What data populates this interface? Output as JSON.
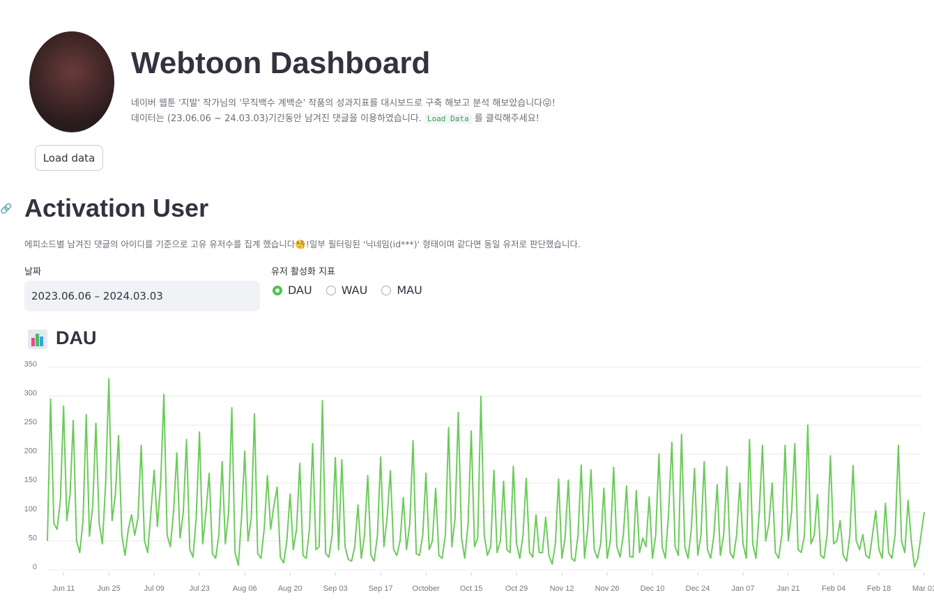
{
  "header": {
    "title": "Webtoon Dashboard",
    "desc1": "네이버 웹툰 '지발' 작가님의 '무직백수 계백순' 작품의 성과지표를 대시보드로 구축 해보고 분석 해보았습니다😜!",
    "desc2": "데이터는 (23.06.06 ~ 24.03.03)기간동안 남겨진 댓글을 이용하였습니다.",
    "desc2_code": "Load Data",
    "desc2_tail": "를 클릭해주세요!",
    "button": "Load data"
  },
  "section": {
    "title": "Activation User",
    "caption": "에피소드별 남겨진 댓글의 아이디를 기준으로 고유 유저수를 집계 했습니다🧐!일부 필터링된 '닉네임(id***)' 형태이며 같다면 동일 유저로 판단했습니다."
  },
  "controls": {
    "date_label": "날짜",
    "date_value": "2023.06.06 – 2024.03.03",
    "radio_label": "유저 활성화 지표",
    "options": [
      "DAU",
      "WAU",
      "MAU"
    ],
    "selected": 0
  },
  "chart_data": {
    "type": "line",
    "title": "DAU",
    "color": "#6bcb5a",
    "grid": true,
    "x": [
      "2023-06-06",
      "2023-06-07",
      "2023-06-08",
      "2023-06-09",
      "2023-06-10",
      "2023-06-11",
      "2023-06-12",
      "2023-06-13",
      "2023-06-14",
      "2023-06-15",
      "2023-06-16",
      "2023-06-17",
      "2023-06-18",
      "2023-06-19",
      "2023-06-20",
      "2023-06-21",
      "2023-06-22",
      "2023-06-23",
      "2023-06-24",
      "2023-06-25",
      "2023-06-26",
      "2023-06-27",
      "2023-06-28",
      "2023-06-29",
      "2023-06-30",
      "2023-07-01",
      "2023-07-02",
      "2023-07-03",
      "2023-07-04",
      "2023-07-05",
      "2023-07-06",
      "2023-07-07",
      "2023-07-08",
      "2023-07-09",
      "2023-07-10",
      "2023-07-11",
      "2023-07-12",
      "2023-07-13",
      "2023-07-14",
      "2023-07-15",
      "2023-07-16",
      "2023-07-17",
      "2023-07-18",
      "2023-07-19",
      "2023-07-20",
      "2023-07-21",
      "2023-07-22",
      "2023-07-23",
      "2023-07-24",
      "2023-07-25",
      "2023-07-26",
      "2023-07-27",
      "2023-07-28",
      "2023-07-29",
      "2023-07-30",
      "2023-07-31",
      "2023-08-01",
      "2023-08-02",
      "2023-08-03",
      "2023-08-04",
      "2023-08-05",
      "2023-08-06",
      "2023-08-07",
      "2023-08-08",
      "2023-08-09",
      "2023-08-10",
      "2023-08-11",
      "2023-08-12",
      "2023-08-13",
      "2023-08-14",
      "2023-08-15",
      "2023-08-16",
      "2023-08-17",
      "2023-08-18",
      "2023-08-19",
      "2023-08-20",
      "2023-08-21",
      "2023-08-22",
      "2023-08-23",
      "2023-08-24",
      "2023-08-25",
      "2023-08-26",
      "2023-08-27",
      "2023-08-28",
      "2023-08-29",
      "2023-08-30",
      "2023-08-31",
      "2023-09-01",
      "2023-09-02",
      "2023-09-03",
      "2023-09-04",
      "2023-09-05",
      "2023-09-06",
      "2023-09-07",
      "2023-09-08",
      "2023-09-09",
      "2023-09-10",
      "2023-09-11",
      "2023-09-12",
      "2023-09-13",
      "2023-09-14",
      "2023-09-15",
      "2023-09-16",
      "2023-09-17",
      "2023-09-18",
      "2023-09-19",
      "2023-09-20",
      "2023-09-21",
      "2023-09-22",
      "2023-09-23",
      "2023-09-24",
      "2023-09-25",
      "2023-09-26",
      "2023-09-27",
      "2023-09-28",
      "2023-09-29",
      "2023-09-30",
      "2023-10-01",
      "2023-10-02",
      "2023-10-03",
      "2023-10-04",
      "2023-10-05",
      "2023-10-06",
      "2023-10-07",
      "2023-10-08",
      "2023-10-09",
      "2023-10-10",
      "2023-10-11",
      "2023-10-12",
      "2023-10-13",
      "2023-10-14",
      "2023-10-15",
      "2023-10-16",
      "2023-10-17",
      "2023-10-18",
      "2023-10-19",
      "2023-10-20",
      "2023-10-21",
      "2023-10-22",
      "2023-10-23",
      "2023-10-24",
      "2023-10-25",
      "2023-10-26",
      "2023-10-27",
      "2023-10-28",
      "2023-10-29",
      "2023-10-30",
      "2023-10-31",
      "2023-11-01",
      "2023-11-02",
      "2023-11-03",
      "2023-11-04",
      "2023-11-05",
      "2023-11-06",
      "2023-11-07",
      "2023-11-08",
      "2023-11-09",
      "2023-11-10",
      "2023-11-11",
      "2023-11-12",
      "2023-11-13",
      "2023-11-14",
      "2023-11-15",
      "2023-11-16",
      "2023-11-17",
      "2023-11-18",
      "2023-11-19",
      "2023-11-20",
      "2023-11-21",
      "2023-11-22",
      "2023-11-23",
      "2023-11-24",
      "2023-11-25",
      "2023-11-26",
      "2023-11-27",
      "2023-11-28",
      "2023-11-29",
      "2023-11-30",
      "2023-12-01",
      "2023-12-02",
      "2023-12-03",
      "2023-12-04",
      "2023-12-05",
      "2023-12-06",
      "2023-12-07",
      "2023-12-08",
      "2023-12-09",
      "2023-12-10",
      "2023-12-11",
      "2023-12-12",
      "2023-12-13",
      "2023-12-14",
      "2023-12-15",
      "2023-12-16",
      "2023-12-17",
      "2023-12-18",
      "2023-12-19",
      "2023-12-20",
      "2023-12-21",
      "2023-12-22",
      "2023-12-23",
      "2023-12-24",
      "2023-12-25",
      "2023-12-26",
      "2023-12-27",
      "2023-12-28",
      "2023-12-29",
      "2023-12-30",
      "2023-12-31",
      "2024-01-01",
      "2024-01-02",
      "2024-01-03",
      "2024-01-04",
      "2024-01-05",
      "2024-01-06",
      "2024-01-07",
      "2024-01-08",
      "2024-01-09",
      "2024-01-10",
      "2024-01-11",
      "2024-01-12",
      "2024-01-13",
      "2024-01-14",
      "2024-01-15",
      "2024-01-16",
      "2024-01-17",
      "2024-01-18",
      "2024-01-19",
      "2024-01-20",
      "2024-01-21",
      "2024-01-22",
      "2024-01-23",
      "2024-01-24",
      "2024-01-25",
      "2024-01-26",
      "2024-01-27",
      "2024-01-28",
      "2024-01-29",
      "2024-01-30",
      "2024-01-31",
      "2024-02-01",
      "2024-02-02",
      "2024-02-03",
      "2024-02-04",
      "2024-02-05",
      "2024-02-06",
      "2024-02-07",
      "2024-02-08",
      "2024-02-09",
      "2024-02-10",
      "2024-02-11",
      "2024-02-12",
      "2024-02-13",
      "2024-02-14",
      "2024-02-15",
      "2024-02-16",
      "2024-02-17",
      "2024-02-18",
      "2024-02-19",
      "2024-02-20",
      "2024-02-21",
      "2024-02-22",
      "2024-02-23",
      "2024-02-24",
      "2024-02-25",
      "2024-02-26",
      "2024-02-27",
      "2024-02-28",
      "2024-02-29",
      "2024-03-01",
      "2024-03-02",
      "2024-03-03"
    ],
    "values": [
      50,
      295,
      80,
      70,
      120,
      283,
      85,
      130,
      258,
      50,
      30,
      85,
      268,
      58,
      110,
      253,
      80,
      45,
      150,
      330,
      85,
      130,
      232,
      60,
      25,
      70,
      95,
      60,
      90,
      215,
      50,
      30,
      100,
      172,
      75,
      150,
      303,
      60,
      40,
      100,
      202,
      55,
      100,
      225,
      35,
      22,
      90,
      238,
      45,
      100,
      167,
      28,
      20,
      60,
      187,
      45,
      100,
      280,
      30,
      8,
      90,
      205,
      50,
      90,
      269,
      28,
      20,
      70,
      163,
      70,
      110,
      143,
      22,
      12,
      50,
      131,
      35,
      70,
      184,
      25,
      20,
      70,
      218,
      35,
      40,
      292,
      28,
      22,
      60,
      194,
      35,
      190,
      40,
      18,
      15,
      40,
      112,
      20,
      60,
      163,
      25,
      15,
      60,
      195,
      40,
      90,
      171,
      35,
      25,
      50,
      125,
      35,
      80,
      223,
      28,
      25,
      60,
      167,
      35,
      50,
      141,
      25,
      20,
      60,
      246,
      40,
      90,
      272,
      55,
      20,
      80,
      240,
      40,
      55,
      300,
      60,
      25,
      40,
      172,
      30,
      50,
      153,
      35,
      30,
      179,
      45,
      20,
      60,
      158,
      30,
      22,
      95,
      30,
      30,
      91,
      25,
      10,
      45,
      157,
      20,
      55,
      155,
      20,
      15,
      60,
      181,
      20,
      70,
      173,
      35,
      20,
      45,
      141,
      20,
      50,
      177,
      40,
      22,
      60,
      145,
      23,
      22,
      137,
      30,
      55,
      40,
      126,
      20,
      60,
      200,
      40,
      20,
      100,
      220,
      40,
      25,
      234,
      40,
      20,
      70,
      175,
      25,
      60,
      187,
      35,
      20,
      60,
      147,
      25,
      60,
      178,
      30,
      20,
      60,
      150,
      45,
      20,
      225,
      45,
      20,
      100,
      215,
      50,
      80,
      150,
      30,
      20,
      60,
      215,
      50,
      100,
      218,
      35,
      30,
      60,
      250,
      45,
      60,
      130,
      25,
      20,
      60,
      197,
      45,
      50,
      85,
      25,
      15,
      60,
      180,
      50,
      35,
      61,
      25,
      20,
      60,
      102,
      35,
      20,
      115,
      30,
      20,
      60,
      215,
      50,
      30,
      120,
      50,
      5,
      20,
      60,
      100
    ],
    "xlim": [
      "2023-06-06",
      "2024-03-03"
    ],
    "xticks": [
      {
        "value": "2023-06-11",
        "label": "Jun 11"
      },
      {
        "value": "2023-06-25",
        "label": "Jun 25"
      },
      {
        "value": "2023-07-09",
        "label": "Jul 09"
      },
      {
        "value": "2023-07-23",
        "label": "Jul 23"
      },
      {
        "value": "2023-08-06",
        "label": "Aug 06"
      },
      {
        "value": "2023-08-20",
        "label": "Aug 20"
      },
      {
        "value": "2023-09-03",
        "label": "Sep 03"
      },
      {
        "value": "2023-09-17",
        "label": "Sep 17"
      },
      {
        "value": "2023-10-01",
        "label": "October"
      },
      {
        "value": "2023-10-15",
        "label": "Oct 15"
      },
      {
        "value": "2023-10-29",
        "label": "Oct 29"
      },
      {
        "value": "2023-11-12",
        "label": "Nov 12"
      },
      {
        "value": "2023-11-26",
        "label": "Nov 26"
      },
      {
        "value": "2023-12-10",
        "label": "Dec 10"
      },
      {
        "value": "2023-12-24",
        "label": "Dec 24"
      },
      {
        "value": "2024-01-07",
        "label": "Jan 07"
      },
      {
        "value": "2024-01-21",
        "label": "Jan 21"
      },
      {
        "value": "2024-02-04",
        "label": "Feb 04"
      },
      {
        "value": "2024-02-18",
        "label": "Feb 18"
      },
      {
        "value": "2024-03-03",
        "label": "Mar 03"
      }
    ],
    "ylim": [
      0,
      350
    ],
    "yticks": [
      0,
      50,
      100,
      150,
      200,
      250,
      300,
      350
    ]
  }
}
